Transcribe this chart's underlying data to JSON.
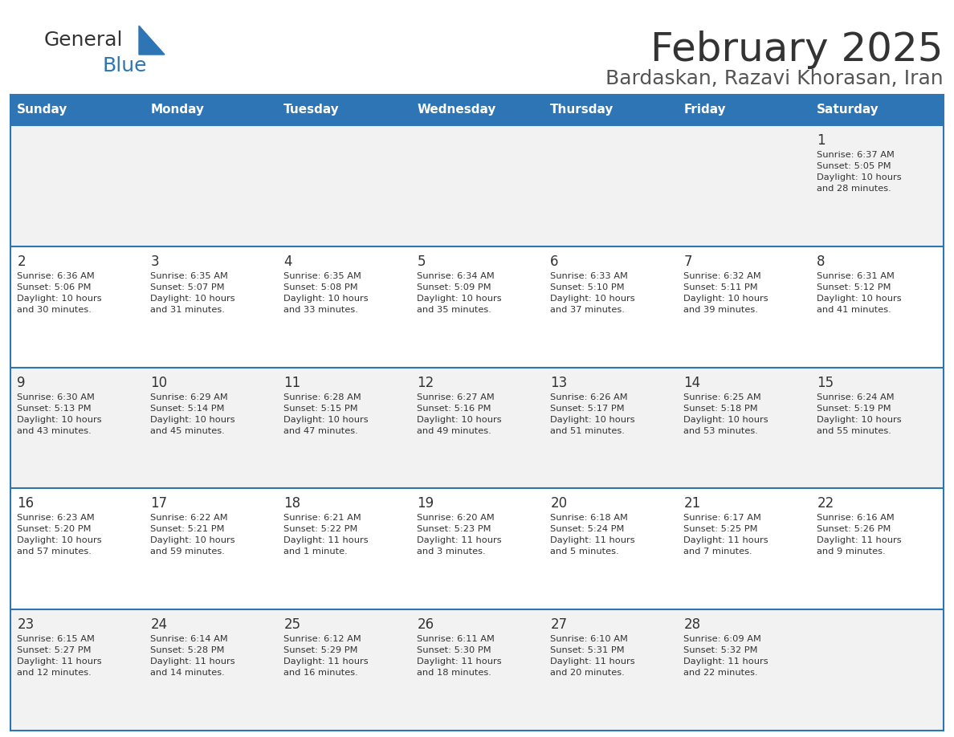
{
  "title": "February 2025",
  "subtitle": "Bardaskan, Razavi Khorasan, Iran",
  "days_of_week": [
    "Sunday",
    "Monday",
    "Tuesday",
    "Wednesday",
    "Thursday",
    "Friday",
    "Saturday"
  ],
  "header_bg": "#2E75B6",
  "header_text_color": "#FFFFFF",
  "cell_bg_odd": "#F2F2F2",
  "cell_bg_even": "#FFFFFF",
  "cell_text_color": "#333333",
  "day_num_color": "#333333",
  "divider_color": "#2E75B6",
  "title_color": "#333333",
  "subtitle_color": "#555555",
  "logo_general_color": "#333333",
  "logo_blue_color": "#2E75B6",
  "weeks": [
    [
      {
        "day": null,
        "info": null
      },
      {
        "day": null,
        "info": null
      },
      {
        "day": null,
        "info": null
      },
      {
        "day": null,
        "info": null
      },
      {
        "day": null,
        "info": null
      },
      {
        "day": null,
        "info": null
      },
      {
        "day": 1,
        "info": "Sunrise: 6:37 AM\nSunset: 5:05 PM\nDaylight: 10 hours\nand 28 minutes."
      }
    ],
    [
      {
        "day": 2,
        "info": "Sunrise: 6:36 AM\nSunset: 5:06 PM\nDaylight: 10 hours\nand 30 minutes."
      },
      {
        "day": 3,
        "info": "Sunrise: 6:35 AM\nSunset: 5:07 PM\nDaylight: 10 hours\nand 31 minutes."
      },
      {
        "day": 4,
        "info": "Sunrise: 6:35 AM\nSunset: 5:08 PM\nDaylight: 10 hours\nand 33 minutes."
      },
      {
        "day": 5,
        "info": "Sunrise: 6:34 AM\nSunset: 5:09 PM\nDaylight: 10 hours\nand 35 minutes."
      },
      {
        "day": 6,
        "info": "Sunrise: 6:33 AM\nSunset: 5:10 PM\nDaylight: 10 hours\nand 37 minutes."
      },
      {
        "day": 7,
        "info": "Sunrise: 6:32 AM\nSunset: 5:11 PM\nDaylight: 10 hours\nand 39 minutes."
      },
      {
        "day": 8,
        "info": "Sunrise: 6:31 AM\nSunset: 5:12 PM\nDaylight: 10 hours\nand 41 minutes."
      }
    ],
    [
      {
        "day": 9,
        "info": "Sunrise: 6:30 AM\nSunset: 5:13 PM\nDaylight: 10 hours\nand 43 minutes."
      },
      {
        "day": 10,
        "info": "Sunrise: 6:29 AM\nSunset: 5:14 PM\nDaylight: 10 hours\nand 45 minutes."
      },
      {
        "day": 11,
        "info": "Sunrise: 6:28 AM\nSunset: 5:15 PM\nDaylight: 10 hours\nand 47 minutes."
      },
      {
        "day": 12,
        "info": "Sunrise: 6:27 AM\nSunset: 5:16 PM\nDaylight: 10 hours\nand 49 minutes."
      },
      {
        "day": 13,
        "info": "Sunrise: 6:26 AM\nSunset: 5:17 PM\nDaylight: 10 hours\nand 51 minutes."
      },
      {
        "day": 14,
        "info": "Sunrise: 6:25 AM\nSunset: 5:18 PM\nDaylight: 10 hours\nand 53 minutes."
      },
      {
        "day": 15,
        "info": "Sunrise: 6:24 AM\nSunset: 5:19 PM\nDaylight: 10 hours\nand 55 minutes."
      }
    ],
    [
      {
        "day": 16,
        "info": "Sunrise: 6:23 AM\nSunset: 5:20 PM\nDaylight: 10 hours\nand 57 minutes."
      },
      {
        "day": 17,
        "info": "Sunrise: 6:22 AM\nSunset: 5:21 PM\nDaylight: 10 hours\nand 59 minutes."
      },
      {
        "day": 18,
        "info": "Sunrise: 6:21 AM\nSunset: 5:22 PM\nDaylight: 11 hours\nand 1 minute."
      },
      {
        "day": 19,
        "info": "Sunrise: 6:20 AM\nSunset: 5:23 PM\nDaylight: 11 hours\nand 3 minutes."
      },
      {
        "day": 20,
        "info": "Sunrise: 6:18 AM\nSunset: 5:24 PM\nDaylight: 11 hours\nand 5 minutes."
      },
      {
        "day": 21,
        "info": "Sunrise: 6:17 AM\nSunset: 5:25 PM\nDaylight: 11 hours\nand 7 minutes."
      },
      {
        "day": 22,
        "info": "Sunrise: 6:16 AM\nSunset: 5:26 PM\nDaylight: 11 hours\nand 9 minutes."
      }
    ],
    [
      {
        "day": 23,
        "info": "Sunrise: 6:15 AM\nSunset: 5:27 PM\nDaylight: 11 hours\nand 12 minutes."
      },
      {
        "day": 24,
        "info": "Sunrise: 6:14 AM\nSunset: 5:28 PM\nDaylight: 11 hours\nand 14 minutes."
      },
      {
        "day": 25,
        "info": "Sunrise: 6:12 AM\nSunset: 5:29 PM\nDaylight: 11 hours\nand 16 minutes."
      },
      {
        "day": 26,
        "info": "Sunrise: 6:11 AM\nSunset: 5:30 PM\nDaylight: 11 hours\nand 18 minutes."
      },
      {
        "day": 27,
        "info": "Sunrise: 6:10 AM\nSunset: 5:31 PM\nDaylight: 11 hours\nand 20 minutes."
      },
      {
        "day": 28,
        "info": "Sunrise: 6:09 AM\nSunset: 5:32 PM\nDaylight: 11 hours\nand 22 minutes."
      },
      {
        "day": null,
        "info": null
      }
    ]
  ]
}
